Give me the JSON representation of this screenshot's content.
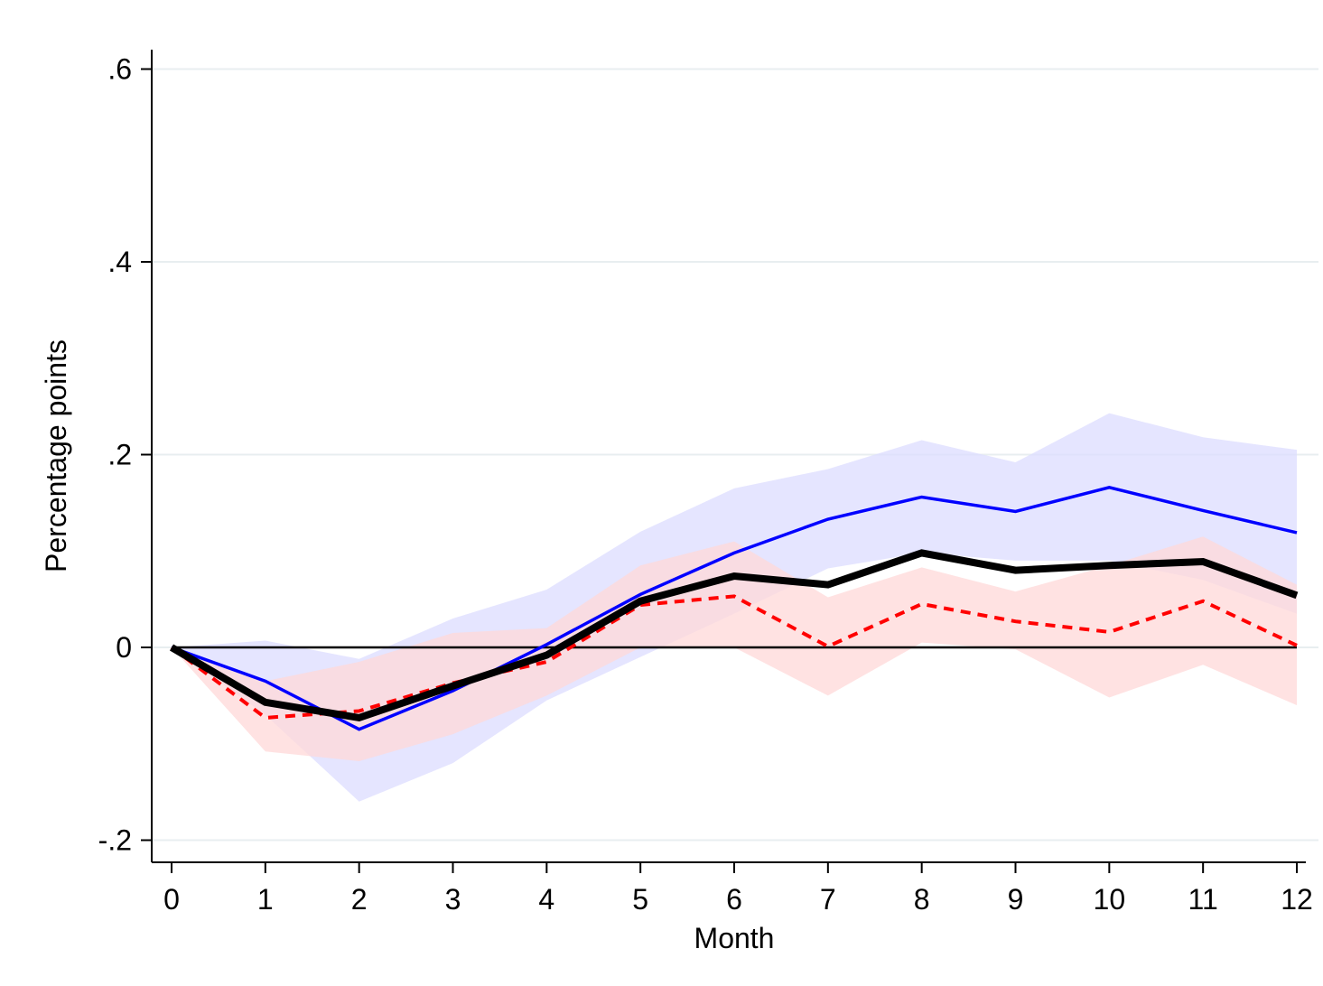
{
  "chart_data": {
    "type": "line",
    "title": "",
    "xlabel": "Month",
    "ylabel": "Percentage points",
    "x": [
      0,
      1,
      2,
      3,
      4,
      5,
      6,
      7,
      8,
      9,
      10,
      11,
      12
    ],
    "xlim": [
      0,
      12
    ],
    "ylim": [
      -0.2,
      0.6
    ],
    "x_ticks": [
      0,
      1,
      2,
      3,
      4,
      5,
      6,
      7,
      8,
      9,
      10,
      11,
      12
    ],
    "x_tick_labels": [
      "0",
      "1",
      "2",
      "3",
      "4",
      "5",
      "6",
      "7",
      "8",
      "9",
      "10",
      "11",
      "12"
    ],
    "y_ticks": [
      -0.2,
      0,
      0.2,
      0.4,
      0.6
    ],
    "y_tick_labels": [
      "-.2",
      "0",
      ".2",
      ".4",
      ".6"
    ],
    "grid": "horizontal",
    "legend": "none",
    "reference_line": 0,
    "series": [
      {
        "style": "solid",
        "color": "#0000ff",
        "band_color": "#dcdcff",
        "values": [
          0,
          -0.035,
          -0.085,
          -0.045,
          0.003,
          0.055,
          0.098,
          0.133,
          0.156,
          0.141,
          0.166,
          0.142,
          0.119
        ],
        "lower": [
          0,
          -0.07,
          -0.16,
          -0.12,
          -0.055,
          -0.01,
          0.035,
          0.082,
          0.098,
          0.09,
          0.09,
          0.07,
          0.035
        ],
        "upper": [
          0,
          0.007,
          -0.012,
          0.03,
          0.06,
          0.12,
          0.165,
          0.185,
          0.215,
          0.192,
          0.243,
          0.218,
          0.205
        ]
      },
      {
        "style": "dashed",
        "color": "#ff0000",
        "band_color": "#ffd8d8",
        "values": [
          0,
          -0.073,
          -0.066,
          -0.037,
          -0.015,
          0.044,
          0.053,
          0.001,
          0.045,
          0.027,
          0.016,
          0.048,
          0.002
        ],
        "lower": [
          0,
          -0.108,
          -0.118,
          -0.09,
          -0.05,
          0.0,
          0.0,
          -0.05,
          0.005,
          -0.002,
          -0.052,
          -0.018,
          -0.06
        ],
        "upper": [
          0,
          -0.035,
          -0.015,
          0.015,
          0.02,
          0.085,
          0.11,
          0.052,
          0.083,
          0.058,
          0.085,
          0.115,
          0.065
        ]
      },
      {
        "style": "solid-thick",
        "color": "#000000",
        "values": [
          0,
          -0.057,
          -0.073,
          -0.04,
          -0.008,
          0.048,
          0.074,
          0.065,
          0.098,
          0.08,
          0.085,
          0.089,
          0.054
        ]
      }
    ]
  }
}
